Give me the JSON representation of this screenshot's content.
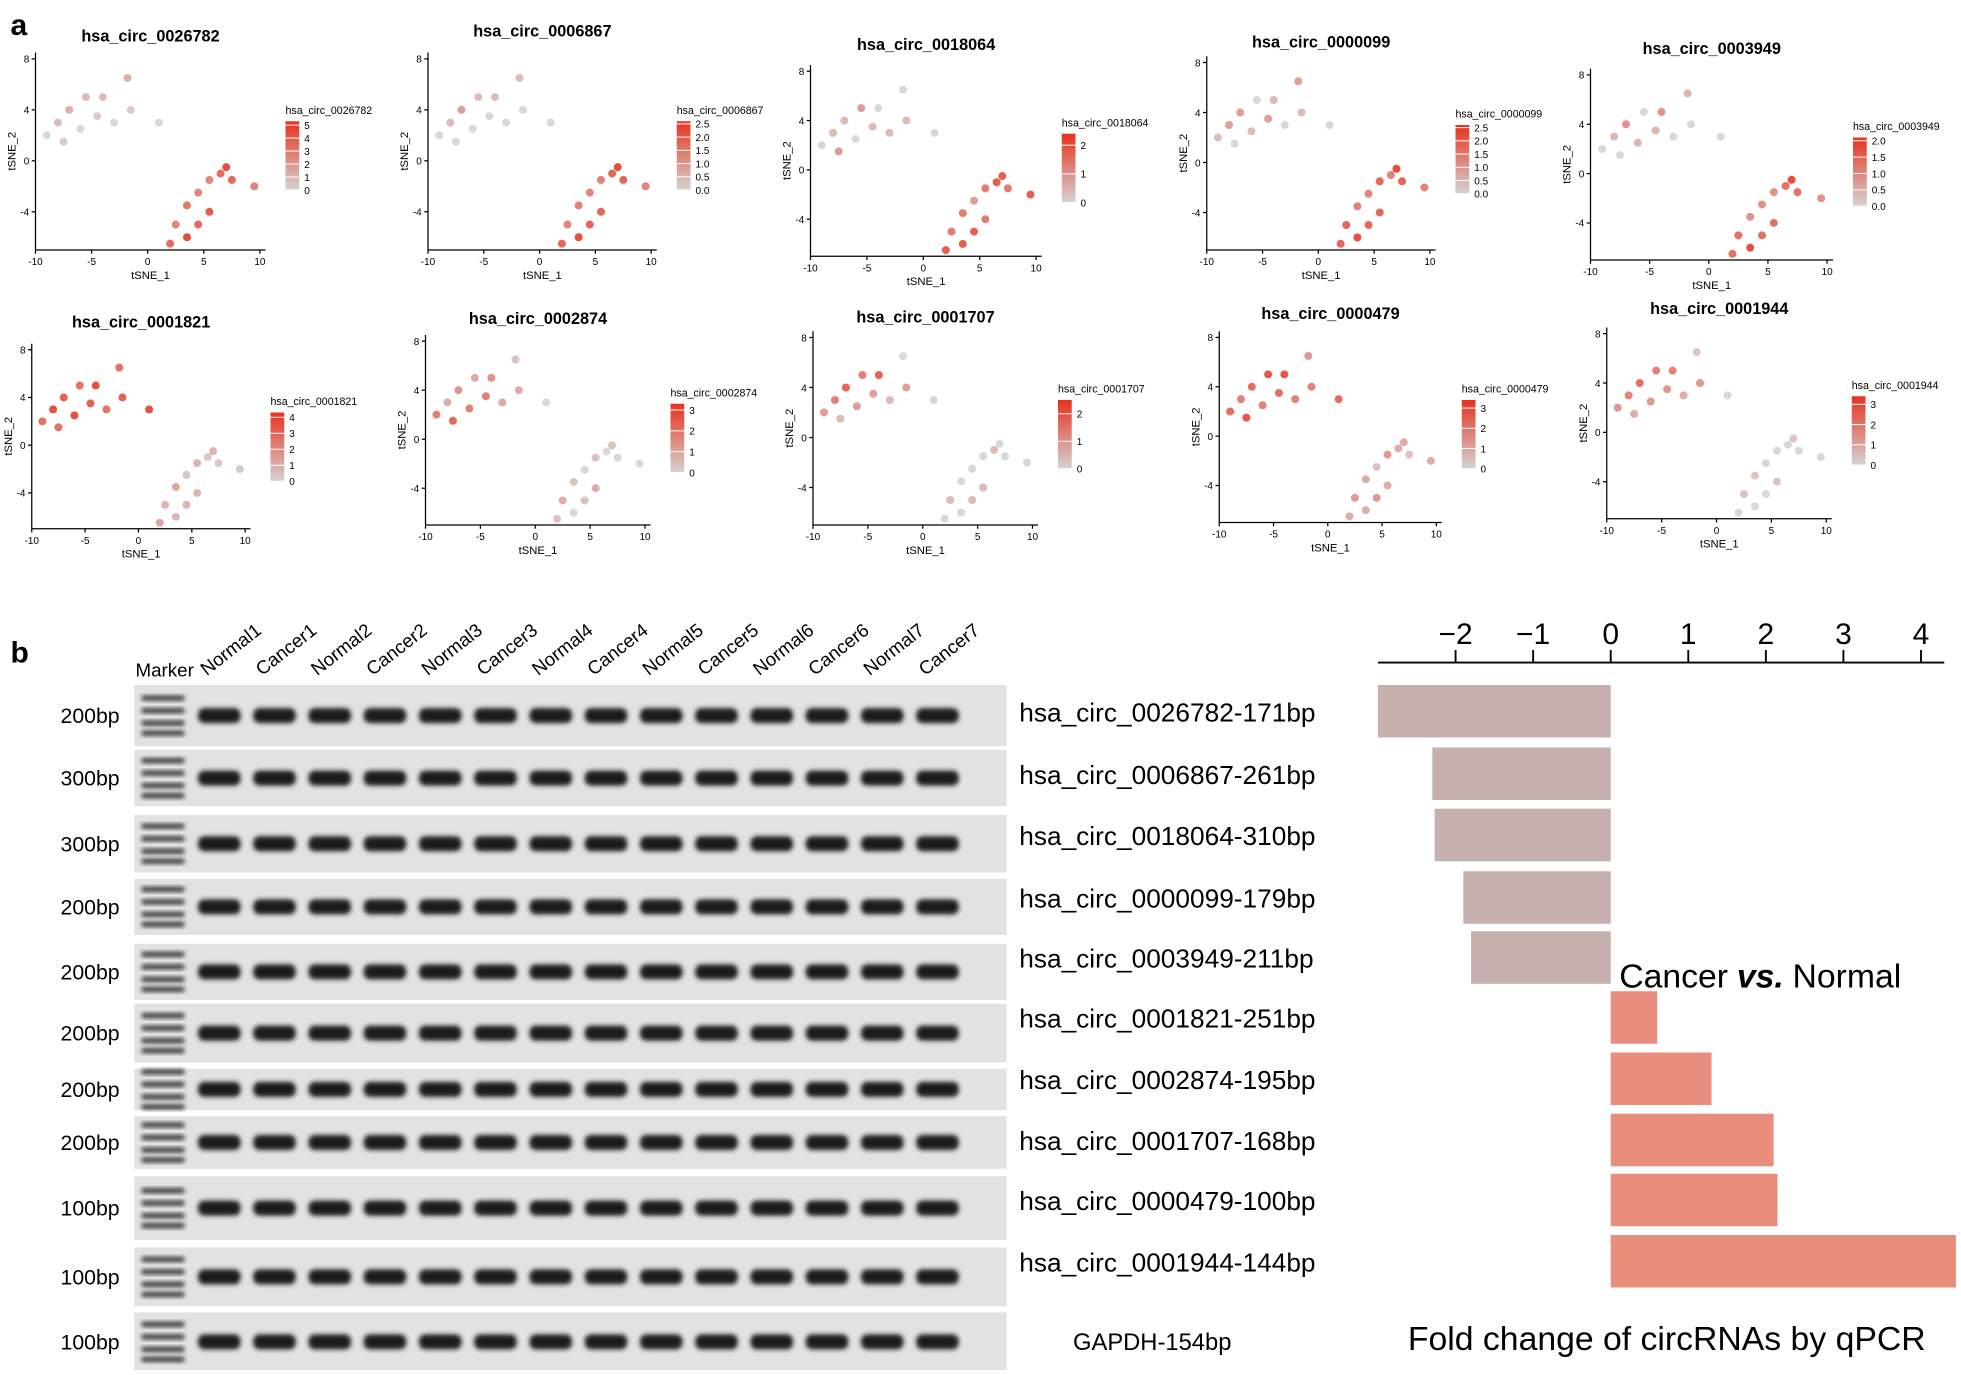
{
  "panel_labels": [
    "a",
    "b"
  ],
  "chart_data": [
    {
      "type": "scatter",
      "title": "hsa_circ_0026782",
      "x_label": "tSNE_1",
      "y_label": "tSNE_2",
      "legend_title": "hsa_circ_0026782",
      "xlim": [
        -10,
        10.5
      ],
      "ylim": [
        -7,
        8.5
      ],
      "xticks": [
        -10,
        -5,
        0,
        5,
        10
      ],
      "yticks": [
        -4,
        0,
        4,
        8
      ],
      "clim": [
        0,
        5.3
      ],
      "colors": [
        "#d4d4d4",
        "#e8321e"
      ],
      "legend_ticks": [
        0,
        1,
        2,
        3,
        4,
        5
      ],
      "x": [
        -9,
        -8,
        -7.5,
        -7,
        -6,
        -5.5,
        -4.5,
        -4,
        -3,
        -1.8,
        -1.5,
        1,
        2,
        2.5,
        3.5,
        3.5,
        4.5,
        4.5,
        5.5,
        5.5,
        6.5,
        7,
        7.5,
        9.5
      ],
      "y": [
        2,
        3,
        1.5,
        4,
        2.5,
        5,
        3.5,
        5,
        3,
        6.5,
        4,
        3,
        -6.5,
        -5,
        -6,
        -3.5,
        -5,
        -2.5,
        -4,
        -1.5,
        -1,
        -0.5,
        -1.5,
        -2
      ],
      "values": [
        0,
        1,
        0.5,
        1.5,
        0,
        1,
        0.5,
        1,
        0,
        1.5,
        0.5,
        0,
        4,
        3,
        5,
        3.5,
        4,
        3,
        4.5,
        3,
        4,
        5,
        4,
        3
      ]
    },
    {
      "type": "scatter",
      "title": "hsa_circ_0006867",
      "x_label": "tSNE_1",
      "y_label": "tSNE_2",
      "legend_title": "hsa_circ_0006867",
      "xlim": [
        -10,
        10.5
      ],
      "ylim": [
        -7,
        8.5
      ],
      "xticks": [
        -10,
        -5,
        0,
        5,
        10
      ],
      "yticks": [
        -4,
        0,
        4,
        8
      ],
      "clim": [
        0,
        2.6
      ],
      "colors": [
        "#d4d4d4",
        "#e8321e"
      ],
      "legend_ticks": [
        {
          "value": 0,
          "label": "0.0"
        },
        0.5,
        {
          "value": 1,
          "label": "1.0"
        },
        1.5,
        {
          "value": 2,
          "label": "2.0"
        },
        2.5
      ],
      "x": [
        -9,
        -8,
        -7.5,
        -7,
        -6,
        -5.5,
        -4.5,
        -4,
        -3,
        -1.8,
        -1.5,
        1,
        2,
        2.5,
        3.5,
        3.5,
        4.5,
        4.5,
        5.5,
        5.5,
        6.5,
        7,
        7.5,
        9.5
      ],
      "y": [
        2,
        3,
        1.5,
        4,
        2.5,
        5,
        3.5,
        5,
        3,
        6.5,
        4,
        3,
        -6.5,
        -5,
        -6,
        -3.5,
        -5,
        -2.5,
        -4,
        -1.5,
        -1,
        -0.5,
        -1.5,
        -2
      ],
      "values": [
        0,
        0.5,
        0,
        1,
        0,
        0.5,
        0,
        0.5,
        0,
        0.5,
        0,
        0,
        2,
        1.5,
        2.5,
        1.5,
        2,
        1.5,
        2,
        1.5,
        2,
        2.5,
        2,
        1.5
      ]
    },
    {
      "type": "scatter",
      "title": "hsa_circ_0018064",
      "x_label": "tSNE_1",
      "y_label": "tSNE_2",
      "legend_title": "hsa_circ_0018064",
      "xlim": [
        -10,
        10.5
      ],
      "ylim": [
        -7,
        8.5
      ],
      "xticks": [
        -10,
        -5,
        0,
        5,
        10
      ],
      "yticks": [
        -4,
        0,
        4,
        8
      ],
      "clim": [
        0,
        2.4
      ],
      "colors": [
        "#d4d4d4",
        "#e8321e"
      ],
      "legend_ticks": [
        0,
        1,
        2
      ],
      "x": [
        -9,
        -8,
        -7.5,
        -7,
        -6,
        -5.5,
        -4.5,
        -4,
        -3,
        -1.8,
        -1.5,
        1,
        2,
        2.5,
        3.5,
        3.5,
        4.5,
        4.5,
        5.5,
        5.5,
        6.5,
        7,
        7.5,
        9.5
      ],
      "y": [
        2,
        3,
        1.5,
        4,
        2.5,
        5,
        3.5,
        5,
        3,
        6.5,
        4,
        3,
        -6.5,
        -5,
        -6,
        -3.5,
        -5,
        -2.5,
        -4,
        -1.5,
        -1,
        -0.5,
        -1.5,
        -2
      ],
      "values": [
        0,
        0.5,
        1,
        0.5,
        0,
        1,
        0.5,
        0,
        0.5,
        0,
        0.5,
        0,
        2,
        1.5,
        2,
        1.5,
        2,
        1,
        1.5,
        1.5,
        2,
        2,
        1.5,
        2
      ]
    },
    {
      "type": "scatter",
      "title": "hsa_circ_0000099",
      "x_label": "tSNE_1",
      "y_label": "tSNE_2",
      "legend_title": "hsa_circ_0000099",
      "xlim": [
        -10,
        10.5
      ],
      "ylim": [
        -7,
        8.5
      ],
      "xticks": [
        -10,
        -5,
        0,
        5,
        10
      ],
      "yticks": [
        -4,
        0,
        4,
        8
      ],
      "clim": [
        0,
        2.6
      ],
      "colors": [
        "#d4d4d4",
        "#e8321e"
      ],
      "legend_ticks": [
        {
          "value": 0,
          "label": "0.0"
        },
        0.5,
        {
          "value": 1,
          "label": "1.0"
        },
        1.5,
        {
          "value": 2,
          "label": "2.0"
        },
        2.5
      ],
      "x": [
        -9,
        -8,
        -7.5,
        -7,
        -6,
        -5.5,
        -4.5,
        -4,
        -3,
        -1.8,
        -1.5,
        1,
        2,
        2.5,
        3.5,
        3.5,
        4.5,
        4.5,
        5.5,
        5.5,
        6.5,
        7,
        7.5,
        9.5
      ],
      "y": [
        2,
        3,
        1.5,
        4,
        2.5,
        5,
        3.5,
        5,
        3,
        6.5,
        4,
        3,
        -6.5,
        -5,
        -6,
        -3.5,
        -5,
        -2.5,
        -4,
        -1.5,
        -1,
        -0.5,
        -1.5,
        -2
      ],
      "values": [
        0.5,
        1,
        0,
        1,
        0.5,
        0,
        1,
        0.5,
        0,
        1,
        0.5,
        0,
        2,
        2,
        2.5,
        1.5,
        2,
        1.5,
        2,
        2,
        1.5,
        2.5,
        2,
        1.5
      ]
    },
    {
      "type": "scatter",
      "title": "hsa_circ_0003949",
      "x_label": "tSNE_1",
      "y_label": "tSNE_2",
      "legend_title": "hsa_circ_0003949",
      "xlim": [
        -10,
        10.5
      ],
      "ylim": [
        -7,
        8.5
      ],
      "xticks": [
        -10,
        -5,
        0,
        5,
        10
      ],
      "yticks": [
        -4,
        0,
        4,
        8
      ],
      "clim": [
        0,
        2.1
      ],
      "colors": [
        "#d4d4d4",
        "#e8321e"
      ],
      "legend_ticks": [
        {
          "value": 0,
          "label": "0.0"
        },
        0.5,
        {
          "value": 1,
          "label": "1.0"
        },
        1.5,
        {
          "value": 2,
          "label": "2.0"
        }
      ],
      "x": [
        -9,
        -8,
        -7.5,
        -7,
        -6,
        -5.5,
        -4.5,
        -4,
        -3,
        -1.8,
        -1.5,
        1,
        2,
        2.5,
        3.5,
        3.5,
        4.5,
        4.5,
        5.5,
        5.5,
        6.5,
        7,
        7.5,
        9.5
      ],
      "y": [
        2,
        3,
        1.5,
        4,
        2.5,
        5,
        3.5,
        5,
        3,
        6.5,
        4,
        3,
        -6.5,
        -5,
        -6,
        -3.5,
        -5,
        -2.5,
        -4,
        -1.5,
        -1,
        -0.5,
        -1.5,
        -2
      ],
      "values": [
        0,
        0.5,
        0,
        1,
        0.5,
        0,
        0.5,
        1,
        0,
        0.5,
        0,
        0,
        1.5,
        1.5,
        2,
        1,
        1.5,
        1,
        1.5,
        1,
        1.5,
        2,
        1.5,
        1
      ]
    },
    {
      "type": "scatter",
      "title": "hsa_circ_0001821",
      "x_label": "tSNE_1",
      "y_label": "tSNE_2",
      "legend_title": "hsa_circ_0001821",
      "xlim": [
        -10,
        10.5
      ],
      "ylim": [
        -7,
        8.5
      ],
      "xticks": [
        -10,
        -5,
        0,
        5,
        10
      ],
      "yticks": [
        -4,
        0,
        4,
        8
      ],
      "clim": [
        0,
        4.3
      ],
      "colors": [
        "#d4d4d4",
        "#e8321e"
      ],
      "legend_ticks": [
        0,
        1,
        2,
        3,
        4
      ],
      "x": [
        -9,
        -8,
        -7.5,
        -7,
        -6,
        -5.5,
        -4.5,
        -4,
        -3,
        -1.8,
        -1.5,
        1,
        2,
        2.5,
        3.5,
        3.5,
        4.5,
        4.5,
        5.5,
        5.5,
        6.5,
        7,
        7.5,
        9.5
      ],
      "y": [
        2,
        3,
        1.5,
        4,
        2.5,
        5,
        3.5,
        5,
        3,
        6.5,
        4,
        3,
        -6.5,
        -5,
        -6,
        -3.5,
        -5,
        -2.5,
        -4,
        -1.5,
        -1,
        -0.5,
        -1.5,
        -2
      ],
      "values": [
        3,
        4,
        3,
        3.5,
        4,
        3,
        3.5,
        4,
        3,
        3,
        3.5,
        4,
        1.5,
        1,
        1,
        1.5,
        1,
        0.5,
        1,
        1,
        0.5,
        1,
        0.5,
        0.5
      ]
    },
    {
      "type": "scatter",
      "title": "hsa_circ_0002874",
      "x_label": "tSNE_1",
      "y_label": "tSNE_2",
      "legend_title": "hsa_circ_0002874",
      "xlim": [
        -10,
        10.5
      ],
      "ylim": [
        -7,
        8.5
      ],
      "xticks": [
        -10,
        -5,
        0,
        5,
        10
      ],
      "yticks": [
        -4,
        0,
        4,
        8
      ],
      "clim": [
        0,
        3.3
      ],
      "colors": [
        "#d4d4d4",
        "#e8321e"
      ],
      "legend_ticks": [
        0,
        1,
        2,
        3
      ],
      "x": [
        -9,
        -8,
        -7.5,
        -7,
        -6,
        -5.5,
        -4.5,
        -4,
        -3,
        -1.8,
        -1.5,
        1,
        2,
        2.5,
        3.5,
        3.5,
        4.5,
        4.5,
        5.5,
        5.5,
        6.5,
        7,
        7.5,
        9.5
      ],
      "y": [
        2,
        3,
        1.5,
        4,
        2.5,
        5,
        3.5,
        5,
        3,
        6.5,
        4,
        3,
        -6.5,
        -5,
        -6,
        -3.5,
        -5,
        -2.5,
        -4,
        -1.5,
        -1,
        -0.5,
        -1.5,
        -2
      ],
      "values": [
        2,
        1,
        2.5,
        1.5,
        2,
        1,
        2,
        1.5,
        1,
        0.5,
        1,
        0,
        0.5,
        1,
        0,
        0.5,
        0.5,
        0,
        1,
        0.5,
        0,
        0.5,
        0,
        0
      ]
    },
    {
      "type": "scatter",
      "title": "hsa_circ_0001707",
      "x_label": "tSNE_1",
      "y_label": "tSNE_2",
      "legend_title": "hsa_circ_0001707",
      "xlim": [
        -10,
        10.5
      ],
      "ylim": [
        -7,
        8.5
      ],
      "xticks": [
        -10,
        -5,
        0,
        5,
        10
      ],
      "yticks": [
        -4,
        0,
        4,
        8
      ],
      "clim": [
        0,
        2.5
      ],
      "colors": [
        "#d4d4d4",
        "#e8321e"
      ],
      "legend_ticks": [
        0,
        1,
        2
      ],
      "x": [
        -9,
        -8,
        -7.5,
        -7,
        -6,
        -5.5,
        -4.5,
        -4,
        -3,
        -1.8,
        -1.5,
        1,
        2,
        2.5,
        3.5,
        3.5,
        4.5,
        4.5,
        5.5,
        5.5,
        6.5,
        7,
        7.5,
        9.5
      ],
      "y": [
        2,
        3,
        1.5,
        4,
        2.5,
        5,
        3.5,
        5,
        3,
        6.5,
        4,
        3,
        -6.5,
        -5,
        -6,
        -3.5,
        -5,
        -2.5,
        -4,
        -1.5,
        -1,
        -0.5,
        -1.5,
        -2
      ],
      "values": [
        1,
        1.5,
        0.5,
        2,
        1,
        1.5,
        1,
        2,
        0.5,
        0,
        1,
        0,
        0,
        0.5,
        0,
        0,
        0.5,
        0,
        0.5,
        0,
        0.5,
        0,
        0,
        0
      ]
    },
    {
      "type": "scatter",
      "title": "hsa_circ_0000479",
      "x_label": "tSNE_1",
      "y_label": "tSNE_2",
      "legend_title": "hsa_circ_0000479",
      "xlim": [
        -10,
        10.5
      ],
      "ylim": [
        -7,
        8.5
      ],
      "xticks": [
        -10,
        -5,
        0,
        5,
        10
      ],
      "yticks": [
        -4,
        0,
        4,
        8
      ],
      "clim": [
        0,
        3.4
      ],
      "colors": [
        "#d4d4d4",
        "#e8321e"
      ],
      "legend_ticks": [
        0,
        1,
        2,
        3
      ],
      "x": [
        -9,
        -8,
        -7.5,
        -7,
        -6,
        -5.5,
        -4.5,
        -4,
        -3,
        -1.8,
        -1.5,
        1,
        2,
        2.5,
        3.5,
        3.5,
        4.5,
        4.5,
        5.5,
        5.5,
        6.5,
        7,
        7.5,
        9.5
      ],
      "y": [
        2,
        3,
        1.5,
        4,
        2.5,
        5,
        3.5,
        5,
        3,
        6.5,
        4,
        3,
        -6.5,
        -5,
        -6,
        -3.5,
        -5,
        -2.5,
        -4,
        -1.5,
        -1,
        -0.5,
        -1.5,
        -2
      ],
      "values": [
        2.5,
        2,
        3,
        2.5,
        2,
        3,
        2.5,
        3,
        2,
        1.5,
        2,
        2.5,
        1,
        1.5,
        1,
        1,
        1.5,
        0.5,
        1,
        1.5,
        1,
        1,
        0.5,
        1
      ]
    },
    {
      "type": "scatter",
      "title": "hsa_circ_0001944",
      "x_label": "tSNE_1",
      "y_label": "tSNE_2",
      "legend_title": "hsa_circ_0001944",
      "xlim": [
        -10,
        10.5
      ],
      "ylim": [
        -7,
        8.5
      ],
      "xticks": [
        -10,
        -5,
        0,
        5,
        10
      ],
      "yticks": [
        -4,
        0,
        4,
        8
      ],
      "clim": [
        0,
        3.4
      ],
      "colors": [
        "#d4d4d4",
        "#e8321e"
      ],
      "legend_ticks": [
        0,
        1,
        2,
        3
      ],
      "x": [
        -9,
        -8,
        -7.5,
        -7,
        -6,
        -5.5,
        -4.5,
        -4,
        -3,
        -1.8,
        -1.5,
        1,
        2,
        2.5,
        3.5,
        3.5,
        4.5,
        4.5,
        5.5,
        5.5,
        6.5,
        7,
        7.5,
        9.5
      ],
      "y": [
        2,
        3,
        1.5,
        4,
        2.5,
        5,
        3.5,
        5,
        3,
        6.5,
        4,
        3,
        -6.5,
        -5,
        -6,
        -3.5,
        -5,
        -2.5,
        -4,
        -1.5,
        -1,
        -0.5,
        -1.5,
        -2
      ],
      "values": [
        1.5,
        2,
        1,
        2.5,
        1.5,
        2,
        1.5,
        2,
        1,
        0.5,
        1.5,
        0,
        0,
        0.5,
        0,
        0.5,
        0,
        0,
        0.5,
        0,
        0,
        0.5,
        0,
        0
      ]
    },
    {
      "type": "barh",
      "x_label": "Fold change of circRNAs by qPCR",
      "annotation": [
        "Cancer",
        "vs.",
        "Normal"
      ],
      "categories": [
        "hsa_circ_0026782-171bp",
        "hsa_circ_0006867-261bp",
        "hsa_circ_0018064-310bp",
        "hsa_circ_0000099-179bp",
        "hsa_circ_0003949-211bp",
        "hsa_circ_0001821-251bp",
        "hsa_circ_0002874-195bp",
        "hsa_circ_0001707-168bp",
        "hsa_circ_0000479-100bp",
        "hsa_circ_0001944-144bp"
      ],
      "values": [
        -3.0,
        -2.3,
        -2.27,
        -1.9,
        -1.8,
        0.6,
        1.3,
        2.1,
        2.15,
        4.45
      ],
      "colors": {
        "negative": "#c6b0ae",
        "positive": "#e98e7c"
      },
      "xlim": [
        -3,
        4.3
      ],
      "xticks": [
        {
          "value": -2,
          "label": "−2"
        },
        {
          "value": -1,
          "label": "−1"
        },
        0,
        1,
        2,
        3,
        4
      ]
    }
  ],
  "gel": {
    "marker_label": "Marker",
    "lanes": [
      "Normal1",
      "Cancer1",
      "Normal2",
      "Cancer2",
      "Normal3",
      "Cancer3",
      "Normal4",
      "Cancer4",
      "Normal5",
      "Cancer5",
      "Normal6",
      "Cancer6",
      "Normal7",
      "Cancer7"
    ],
    "sizes": [
      "200bp",
      "300bp",
      "300bp",
      "200bp",
      "200bp",
      "200bp",
      "200bp",
      "200bp",
      "100bp",
      "100bp",
      "100bp"
    ],
    "control_label": "GAPDH-154bp"
  }
}
